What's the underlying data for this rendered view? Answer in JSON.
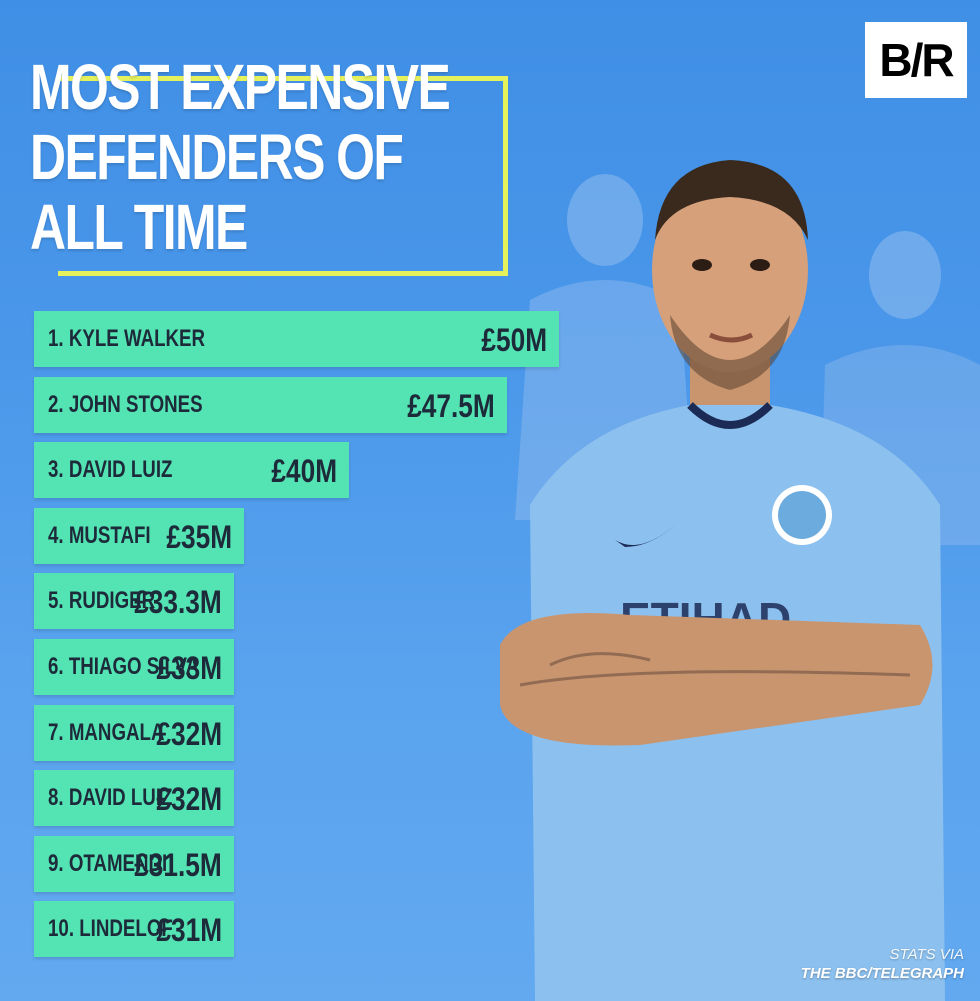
{
  "header": {
    "title_lines": [
      "MOST EXPENSIVE",
      "DEFENDERS OF",
      "ALL TIME"
    ],
    "logo": "B/R"
  },
  "source": {
    "via": "STATS VIA",
    "org": "THE BBC/TELEGRAPH"
  },
  "colors": {
    "background": "#4a97ea",
    "bar": "#54e3b3",
    "frame": "#e6f25c",
    "text_dark": "#1d2a3a"
  },
  "chart_data": {
    "type": "bar",
    "orientation": "horizontal",
    "title": "MOST EXPENSIVE DEFENDERS OF ALL TIME",
    "categories": [
      "1. KYLE WALKER",
      "2. JOHN STONES",
      "3. DAVID LUIZ",
      "4. MUSTAFI",
      "5. RUDIGER",
      "6. THIAGO SILVA",
      "7. MANGALA",
      "8. DAVID LUIZ",
      "9. OTAMENDI",
      "10. LINDELOF"
    ],
    "values": [
      50,
      47.5,
      40,
      35,
      33.3,
      33,
      32,
      32,
      31.5,
      31
    ],
    "value_labels": [
      "£50M",
      "£47.5M",
      "£40M",
      "£35M",
      "£33.3M",
      "£33M",
      "£32M",
      "£32M",
      "£31.5M",
      "£31M"
    ],
    "unit": "£M",
    "xlabel": "",
    "ylabel": "",
    "grid": false,
    "legend": "none"
  }
}
